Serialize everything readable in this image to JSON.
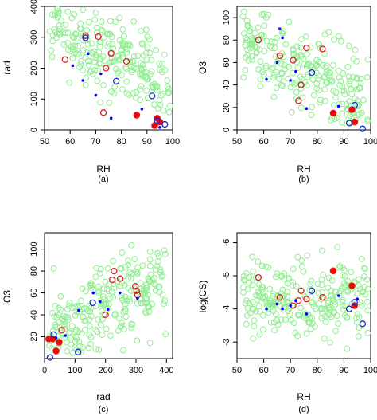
{
  "colors": {
    "background": "#90ee90",
    "red": "#ff0000",
    "dark_red": "#d62020",
    "blue": "#0000ff",
    "dark_blue": "#1030c0"
  },
  "chart_data": [
    {
      "type": "scatter",
      "panel_label": "(a)",
      "xlabel": "RH",
      "ylabel": "rad",
      "xlim": [
        50,
        100
      ],
      "ylim": [
        0,
        400
      ],
      "xticks": [
        50,
        60,
        70,
        80,
        90,
        100
      ],
      "yticks": [
        0,
        100,
        200,
        300,
        400
      ],
      "y_reversed": false,
      "background_seed": 11,
      "highlight": [
        {
          "x": 58,
          "y": 228,
          "marker": "red-open"
        },
        {
          "x": 66,
          "y": 305,
          "marker": "red-open"
        },
        {
          "x": 71,
          "y": 302,
          "marker": "red-open"
        },
        {
          "x": 74,
          "y": 200,
          "marker": "red-open"
        },
        {
          "x": 76,
          "y": 248,
          "marker": "red-open"
        },
        {
          "x": 82,
          "y": 222,
          "marker": "red-open"
        },
        {
          "x": 73,
          "y": 56,
          "marker": "red-open"
        },
        {
          "x": 86,
          "y": 48,
          "marker": "red-filled"
        },
        {
          "x": 93,
          "y": 14,
          "marker": "red-filled"
        },
        {
          "x": 94,
          "y": 38,
          "marker": "red-filled"
        },
        {
          "x": 95,
          "y": 26,
          "marker": "red-filled"
        },
        {
          "x": 66,
          "y": 298,
          "marker": "blue-open"
        },
        {
          "x": 78,
          "y": 158,
          "marker": "blue-open"
        },
        {
          "x": 92,
          "y": 110,
          "marker": "blue-open"
        },
        {
          "x": 97,
          "y": 18,
          "marker": "blue-open"
        },
        {
          "x": 94,
          "y": 30,
          "marker": "blue-open"
        },
        {
          "x": 61,
          "y": 208,
          "marker": "blue-dot"
        },
        {
          "x": 65,
          "y": 160,
          "marker": "blue-dot"
        },
        {
          "x": 67,
          "y": 247,
          "marker": "blue-dot"
        },
        {
          "x": 70,
          "y": 112,
          "marker": "blue-dot"
        },
        {
          "x": 72,
          "y": 182,
          "marker": "blue-dot"
        },
        {
          "x": 76,
          "y": 38,
          "marker": "blue-dot"
        },
        {
          "x": 88,
          "y": 68,
          "marker": "blue-dot"
        },
        {
          "x": 95,
          "y": 8,
          "marker": "blue-dot"
        }
      ]
    },
    {
      "type": "scatter",
      "panel_label": "(b)",
      "xlabel": "RH",
      "ylabel": "O3",
      "xlim": [
        50,
        100
      ],
      "ylim": [
        0,
        110
      ],
      "xticks": [
        50,
        60,
        70,
        80,
        90,
        100
      ],
      "yticks": [
        0,
        20,
        40,
        60,
        80,
        100
      ],
      "y_reversed": false,
      "background_seed": 23,
      "highlight": [
        {
          "x": 58,
          "y": 80,
          "marker": "red-open"
        },
        {
          "x": 66,
          "y": 66,
          "marker": "red-open"
        },
        {
          "x": 71,
          "y": 62,
          "marker": "red-open"
        },
        {
          "x": 74,
          "y": 40,
          "marker": "red-open"
        },
        {
          "x": 76,
          "y": 73,
          "marker": "red-open"
        },
        {
          "x": 82,
          "y": 72,
          "marker": "red-open"
        },
        {
          "x": 73,
          "y": 26,
          "marker": "red-open"
        },
        {
          "x": 86,
          "y": 15,
          "marker": "red-filled"
        },
        {
          "x": 93,
          "y": 18,
          "marker": "red-filled"
        },
        {
          "x": 94,
          "y": 7,
          "marker": "red-filled"
        },
        {
          "x": 94,
          "y": 22,
          "marker": "blue-open"
        },
        {
          "x": 78,
          "y": 51,
          "marker": "blue-open"
        },
        {
          "x": 92,
          "y": 6,
          "marker": "blue-open"
        },
        {
          "x": 97,
          "y": 1,
          "marker": "blue-open"
        },
        {
          "x": 66,
          "y": 90,
          "marker": "blue-dot"
        },
        {
          "x": 65,
          "y": 60,
          "marker": "blue-dot"
        },
        {
          "x": 67,
          "y": 82,
          "marker": "blue-dot"
        },
        {
          "x": 70,
          "y": 44,
          "marker": "blue-dot"
        },
        {
          "x": 72,
          "y": 52,
          "marker": "blue-dot"
        },
        {
          "x": 76,
          "y": 19,
          "marker": "blue-dot"
        },
        {
          "x": 88,
          "y": 21,
          "marker": "blue-dot"
        },
        {
          "x": 61,
          "y": 45,
          "marker": "blue-dot"
        }
      ]
    },
    {
      "type": "scatter",
      "panel_label": "(c)",
      "xlabel": "rad",
      "ylabel": "O3",
      "xlim": [
        0,
        420
      ],
      "ylim": [
        0,
        115
      ],
      "xticks": [
        0,
        100,
        200,
        300,
        400
      ],
      "yticks": [
        20,
        40,
        60,
        80,
        100
      ],
      "y_reversed": false,
      "background_seed": 37,
      "highlight": [
        {
          "x": 228,
          "y": 80,
          "marker": "red-open"
        },
        {
          "x": 302,
          "y": 62,
          "marker": "red-open"
        },
        {
          "x": 248,
          "y": 73,
          "marker": "red-open"
        },
        {
          "x": 222,
          "y": 72,
          "marker": "red-open"
        },
        {
          "x": 200,
          "y": 40,
          "marker": "red-open"
        },
        {
          "x": 56,
          "y": 26,
          "marker": "red-open"
        },
        {
          "x": 305,
          "y": 58,
          "marker": "red-open"
        },
        {
          "x": 14,
          "y": 18,
          "marker": "red-filled"
        },
        {
          "x": 38,
          "y": 7,
          "marker": "red-filled"
        },
        {
          "x": 48,
          "y": 15,
          "marker": "red-filled"
        },
        {
          "x": 26,
          "y": 18,
          "marker": "red-filled"
        },
        {
          "x": 158,
          "y": 51,
          "marker": "blue-open"
        },
        {
          "x": 110,
          "y": 6,
          "marker": "blue-open"
        },
        {
          "x": 18,
          "y": 1,
          "marker": "blue-open"
        },
        {
          "x": 30,
          "y": 22,
          "marker": "blue-open"
        },
        {
          "x": 298,
          "y": 66,
          "marker": "red-open"
        },
        {
          "x": 208,
          "y": 45,
          "marker": "blue-dot"
        },
        {
          "x": 160,
          "y": 60,
          "marker": "blue-dot"
        },
        {
          "x": 247,
          "y": 60,
          "marker": "blue-dot"
        },
        {
          "x": 112,
          "y": 44,
          "marker": "blue-dot"
        },
        {
          "x": 182,
          "y": 52,
          "marker": "blue-dot"
        },
        {
          "x": 38,
          "y": 19,
          "marker": "blue-dot"
        },
        {
          "x": 68,
          "y": 21,
          "marker": "blue-dot"
        },
        {
          "x": 305,
          "y": 55,
          "marker": "blue-dot"
        }
      ]
    },
    {
      "type": "scatter",
      "panel_label": "(d)",
      "xlabel": "RH",
      "ylabel": "log(CS)",
      "xlim": [
        50,
        100
      ],
      "ylim": [
        -2.5,
        -6.3
      ],
      "xticks": [
        50,
        60,
        70,
        80,
        90,
        100
      ],
      "yticks": [
        -3,
        -4,
        -5,
        -6
      ],
      "y_reversed": true,
      "background_seed": 53,
      "highlight": [
        {
          "x": 58,
          "y": -4.95,
          "marker": "red-open"
        },
        {
          "x": 66,
          "y": -4.35,
          "marker": "red-open"
        },
        {
          "x": 71,
          "y": -4.1,
          "marker": "red-open"
        },
        {
          "x": 74,
          "y": -4.55,
          "marker": "red-open"
        },
        {
          "x": 76,
          "y": -4.3,
          "marker": "red-open"
        },
        {
          "x": 82,
          "y": -4.35,
          "marker": "red-open"
        },
        {
          "x": 73,
          "y": -4.25,
          "marker": "red-open"
        },
        {
          "x": 86,
          "y": -5.15,
          "marker": "red-filled"
        },
        {
          "x": 93,
          "y": -4.7,
          "marker": "red-filled"
        },
        {
          "x": 94,
          "y": -4.1,
          "marker": "red-filled"
        },
        {
          "x": 78,
          "y": -4.55,
          "marker": "blue-open"
        },
        {
          "x": 92,
          "y": -4.0,
          "marker": "blue-open"
        },
        {
          "x": 97,
          "y": -3.55,
          "marker": "blue-open"
        },
        {
          "x": 94,
          "y": -4.2,
          "marker": "blue-open"
        },
        {
          "x": 61,
          "y": -4.0,
          "marker": "blue-dot"
        },
        {
          "x": 65,
          "y": -4.15,
          "marker": "blue-dot"
        },
        {
          "x": 67,
          "y": -4.0,
          "marker": "blue-dot"
        },
        {
          "x": 70,
          "y": -4.1,
          "marker": "blue-dot"
        },
        {
          "x": 72,
          "y": -4.25,
          "marker": "blue-dot"
        },
        {
          "x": 76,
          "y": -3.85,
          "marker": "blue-dot"
        },
        {
          "x": 88,
          "y": -4.4,
          "marker": "blue-dot"
        },
        {
          "x": 95,
          "y": -4.3,
          "marker": "blue-dot"
        }
      ]
    }
  ]
}
